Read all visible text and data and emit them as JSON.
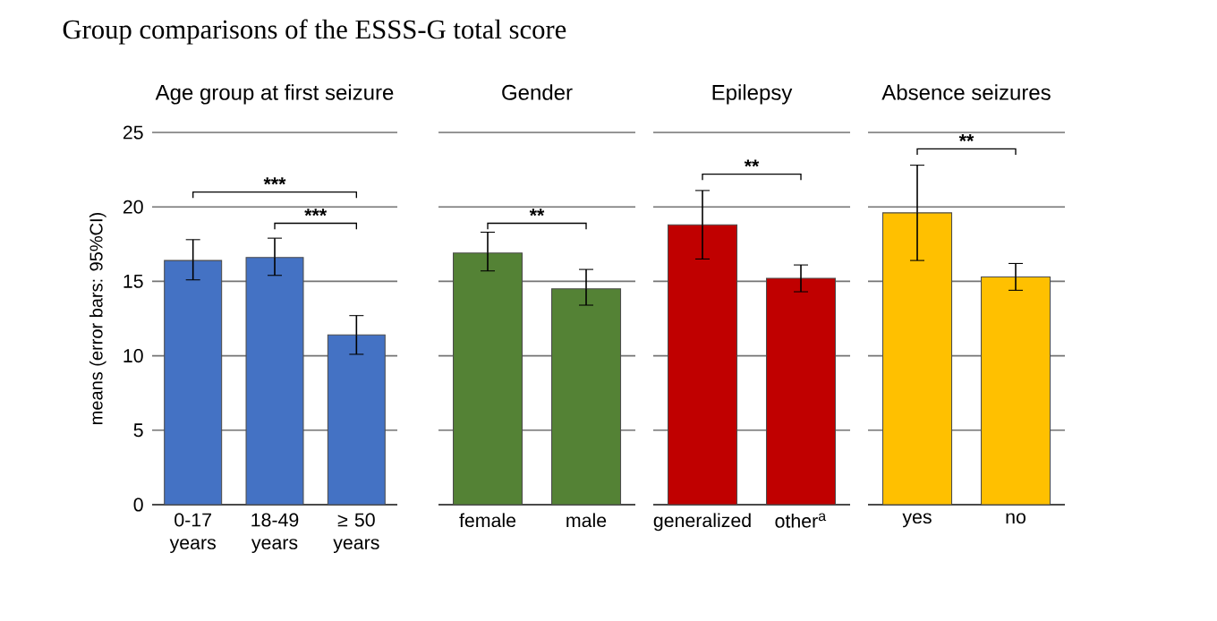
{
  "chart_data": [
    {
      "type": "bar",
      "title": "Group comparisons of the ESSS-G total score",
      "subtitle": "Age group at first seizure",
      "ylabel": "means (error bars: 95%CI)",
      "categories": [
        "0-17 years",
        "18-49 years",
        "≥ 50 years"
      ],
      "values": [
        16.4,
        16.6,
        11.4
      ],
      "errors": [
        [
          15.1,
          17.8
        ],
        [
          15.4,
          17.9
        ],
        [
          10.1,
          12.7
        ]
      ],
      "color": "#4472c4",
      "ylim": [
        0,
        25
      ],
      "yticks": [
        0,
        5,
        10,
        15,
        20,
        25
      ],
      "grid": "y",
      "annotations": [
        "***",
        "***"
      ]
    },
    {
      "type": "bar",
      "subtitle": "Gender",
      "categories": [
        "female",
        "male"
      ],
      "values": [
        16.9,
        14.5
      ],
      "errors": [
        [
          15.7,
          18.3
        ],
        [
          13.4,
          15.8
        ]
      ],
      "color": "#548235",
      "ylim": [
        0,
        25
      ],
      "yticks": [
        0,
        5,
        10,
        15,
        20,
        25
      ],
      "grid": "y",
      "tick_labels": "x",
      "annotations": [
        "**"
      ]
    },
    {
      "type": "bar",
      "subtitle": "Epilepsy",
      "categories": [
        "generalized",
        "other$^{a}$"
      ],
      "values": [
        18.8,
        15.2
      ],
      "errors": [
        [
          16.5,
          21.1
        ],
        [
          14.3,
          16.1
        ]
      ],
      "color": "#c00000",
      "ylim": [
        0,
        25
      ],
      "yticks": [
        0,
        5,
        10,
        15,
        20,
        25
      ],
      "grid": "y",
      "tick_labels": "x",
      "annotations": [
        "**"
      ]
    },
    {
      "type": "bar",
      "subtitle": "Absence seizures",
      "categories": [
        "yes",
        "no"
      ],
      "values": [
        19.6,
        15.3
      ],
      "errors": [
        [
          16.4,
          22.8
        ],
        [
          14.4,
          16.2
        ]
      ],
      "color": "#ffc000",
      "ylim": [
        0,
        25
      ],
      "yticks": [
        0,
        5,
        10,
        15,
        20,
        25
      ],
      "grid": "y",
      "tick_labels": "x",
      "annotations": [
        "**"
      ]
    }
  ]
}
